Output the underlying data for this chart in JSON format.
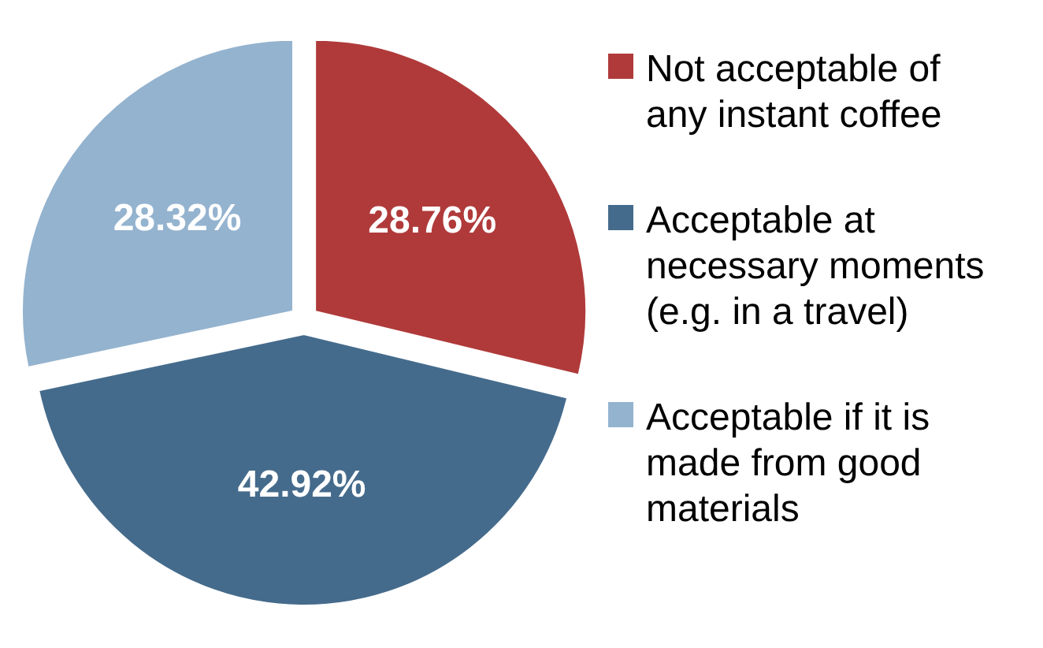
{
  "chart_data": {
    "type": "pie",
    "categories": [
      "Not acceptable of any instant coffee",
      "Acceptable at necessary moments (e.g. in a travel)",
      "Acceptable if it is made from good materials"
    ],
    "values": [
      28.76,
      42.92,
      28.32
    ],
    "value_labels": [
      "28.76%",
      "42.92%",
      "28.32%"
    ],
    "colors": [
      "#b03a3a",
      "#456b8c",
      "#94b3cf"
    ],
    "legend": "right"
  }
}
